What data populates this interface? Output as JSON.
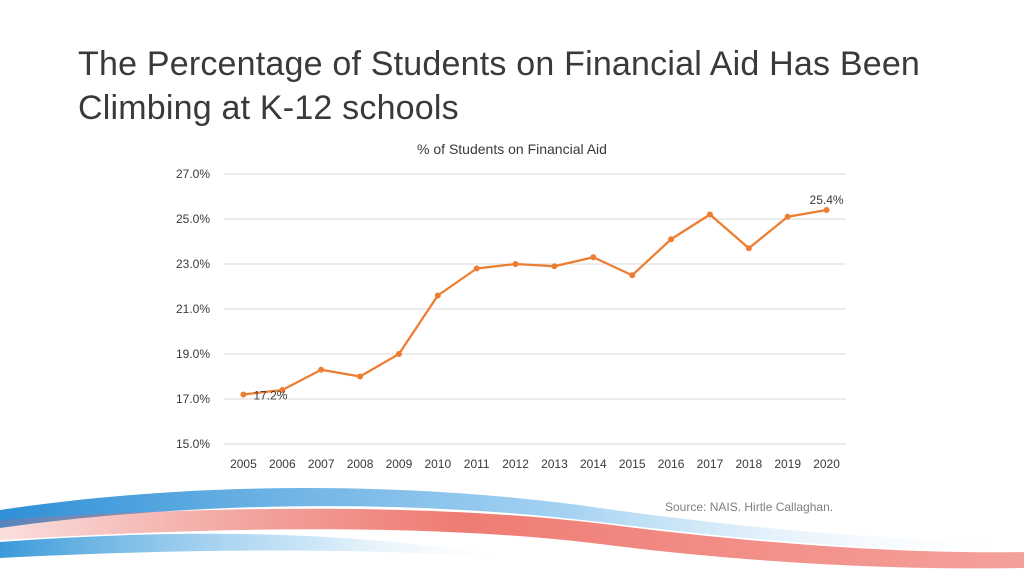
{
  "slide": {
    "title": "The Percentage of Students on Financial Aid Has Been Climbing at K-12 schools",
    "source": "Source: NAIS. Hirtle Callaghan."
  },
  "colors": {
    "line": "#ed7d31",
    "grid": "#d9d9d9",
    "text": "#3a3a3a",
    "wave_blue": "#3a9ad9",
    "wave_red": "#e8615a"
  },
  "chart_data": {
    "type": "line",
    "title": "% of Students on Financial Aid",
    "xlabel": "",
    "ylabel": "",
    "ylim": [
      15.0,
      27.0
    ],
    "y_ticks": [
      "15.0%",
      "17.0%",
      "19.0%",
      "21.0%",
      "23.0%",
      "25.0%",
      "27.0%"
    ],
    "categories": [
      "2005",
      "2006",
      "2007",
      "2008",
      "2009",
      "2010",
      "2011",
      "2012",
      "2013",
      "2014",
      "2015",
      "2016",
      "2017",
      "2018",
      "2019",
      "2020"
    ],
    "series": [
      {
        "name": "% of Students on Financial Aid",
        "values": [
          17.2,
          17.4,
          18.3,
          18.0,
          19.0,
          21.6,
          22.8,
          23.0,
          22.9,
          23.3,
          22.5,
          24.1,
          25.2,
          23.7,
          25.1,
          25.4
        ]
      }
    ],
    "data_labels": [
      {
        "index": 0,
        "text": "17.2%"
      },
      {
        "index": 15,
        "text": "25.4%"
      }
    ],
    "grid": true,
    "legend": "none"
  }
}
